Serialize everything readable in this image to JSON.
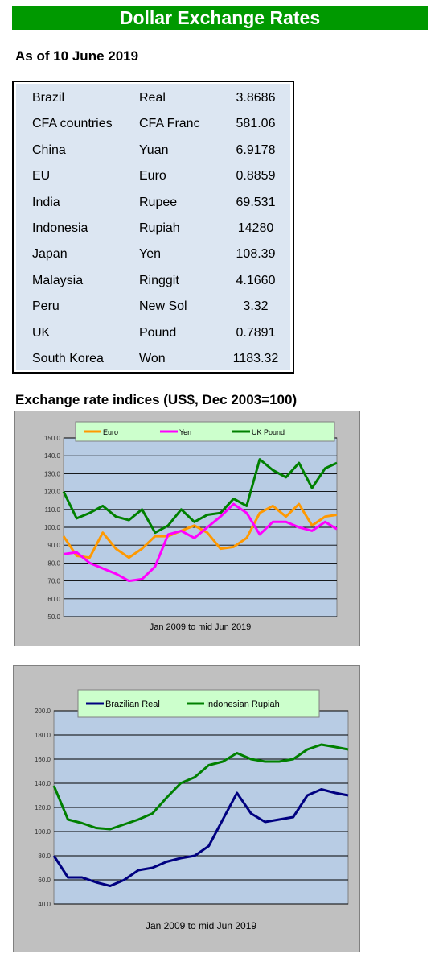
{
  "header": {
    "title": "Dollar Exchange Rates",
    "as_of": "As of 10 June 2019"
  },
  "rates": [
    {
      "country": "Brazil",
      "currency": "Real",
      "value": "3.8686"
    },
    {
      "country": "CFA countries",
      "currency": "CFA Franc",
      "value": "581.06"
    },
    {
      "country": "China",
      "currency": "Yuan",
      "value": "6.9178"
    },
    {
      "country": "EU",
      "currency": "Euro",
      "value": "0.8859"
    },
    {
      "country": "India",
      "currency": "Rupee",
      "value": "69.531"
    },
    {
      "country": "Indonesia",
      "currency": "Rupiah",
      "value": "14280"
    },
    {
      "country": "Japan",
      "currency": "Yen",
      "value": "108.39"
    },
    {
      "country": "Malaysia",
      "currency": "Ringgit",
      "value": "4.1660"
    },
    {
      "country": "Peru",
      "currency": "New Sol",
      "value": "3.32"
    },
    {
      "country": "UK",
      "currency": "Pound",
      "value": "0.7891"
    },
    {
      "country": "South Korea",
      "currency": "Won",
      "value": "1183.32"
    }
  ],
  "indices_title": "Exchange rate indices (US$, Dec 2003=100)",
  "chart_data": [
    {
      "type": "line",
      "xlabel": "Jan 2009  to mid Jun 2019",
      "ylim": [
        50,
        150
      ],
      "yticks": [
        "50.0",
        "60.0",
        "70.0",
        "80.0",
        "90.0",
        "100.0",
        "110.0",
        "120.0",
        "130.0",
        "140.0",
        "150.0"
      ],
      "grid": "horizontal",
      "legend": "top",
      "plot_bg": "#b8cce4",
      "x": [
        2009.0,
        2009.5,
        2010.0,
        2010.5,
        2011.0,
        2011.5,
        2012.0,
        2012.5,
        2013.0,
        2013.5,
        2014.0,
        2014.5,
        2015.0,
        2015.5,
        2016.0,
        2016.5,
        2017.0,
        2017.5,
        2018.0,
        2018.5,
        2019.0,
        2019.45
      ],
      "series": [
        {
          "name": "Euro",
          "color": "#ff9900",
          "values": [
            95,
            84,
            83,
            97,
            88,
            83,
            88,
            95,
            95,
            98,
            101,
            97,
            88,
            89,
            94,
            108,
            112,
            106,
            113,
            101,
            106,
            107
          ]
        },
        {
          "name": "Yen",
          "color": "#ff00ff",
          "values": [
            85,
            86,
            80,
            77,
            74,
            70,
            71,
            78,
            96,
            98,
            94,
            100,
            106,
            113,
            108,
            96,
            103,
            103,
            100,
            98,
            103,
            99
          ]
        },
        {
          "name": "UK Pound",
          "color": "#008000",
          "values": [
            120,
            105,
            108,
            112,
            106,
            104,
            110,
            97,
            101,
            110,
            103,
            107,
            108,
            116,
            112,
            138,
            132,
            128,
            136,
            122,
            133,
            136
          ]
        }
      ]
    },
    {
      "type": "line",
      "xlabel": "Jan 2009  to mid Jun 2019",
      "ylim": [
        40,
        200
      ],
      "yticks": [
        "40.0",
        "60.0",
        "80.0",
        "100.0",
        "120.0",
        "140.0",
        "160.0",
        "180.0",
        "200.0"
      ],
      "grid": "horizontal",
      "legend": "top",
      "plot_bg": "#b8cce4",
      "x": [
        2009.0,
        2009.5,
        2010.0,
        2010.5,
        2011.0,
        2011.5,
        2012.0,
        2012.5,
        2013.0,
        2013.5,
        2014.0,
        2014.5,
        2015.0,
        2015.5,
        2016.0,
        2016.5,
        2017.0,
        2017.5,
        2018.0,
        2018.5,
        2019.0,
        2019.45
      ],
      "series": [
        {
          "name": "Brazilian Real",
          "color": "#000080",
          "values": [
            80,
            62,
            62,
            58,
            55,
            60,
            68,
            70,
            75,
            78,
            80,
            88,
            110,
            132,
            115,
            108,
            110,
            112,
            130,
            135,
            132,
            130
          ]
        },
        {
          "name": "Indonesian Rupiah",
          "color": "#008000",
          "values": [
            138,
            110,
            107,
            103,
            102,
            106,
            110,
            115,
            128,
            140,
            145,
            155,
            158,
            165,
            160,
            158,
            158,
            160,
            168,
            172,
            170,
            168
          ]
        }
      ]
    }
  ]
}
